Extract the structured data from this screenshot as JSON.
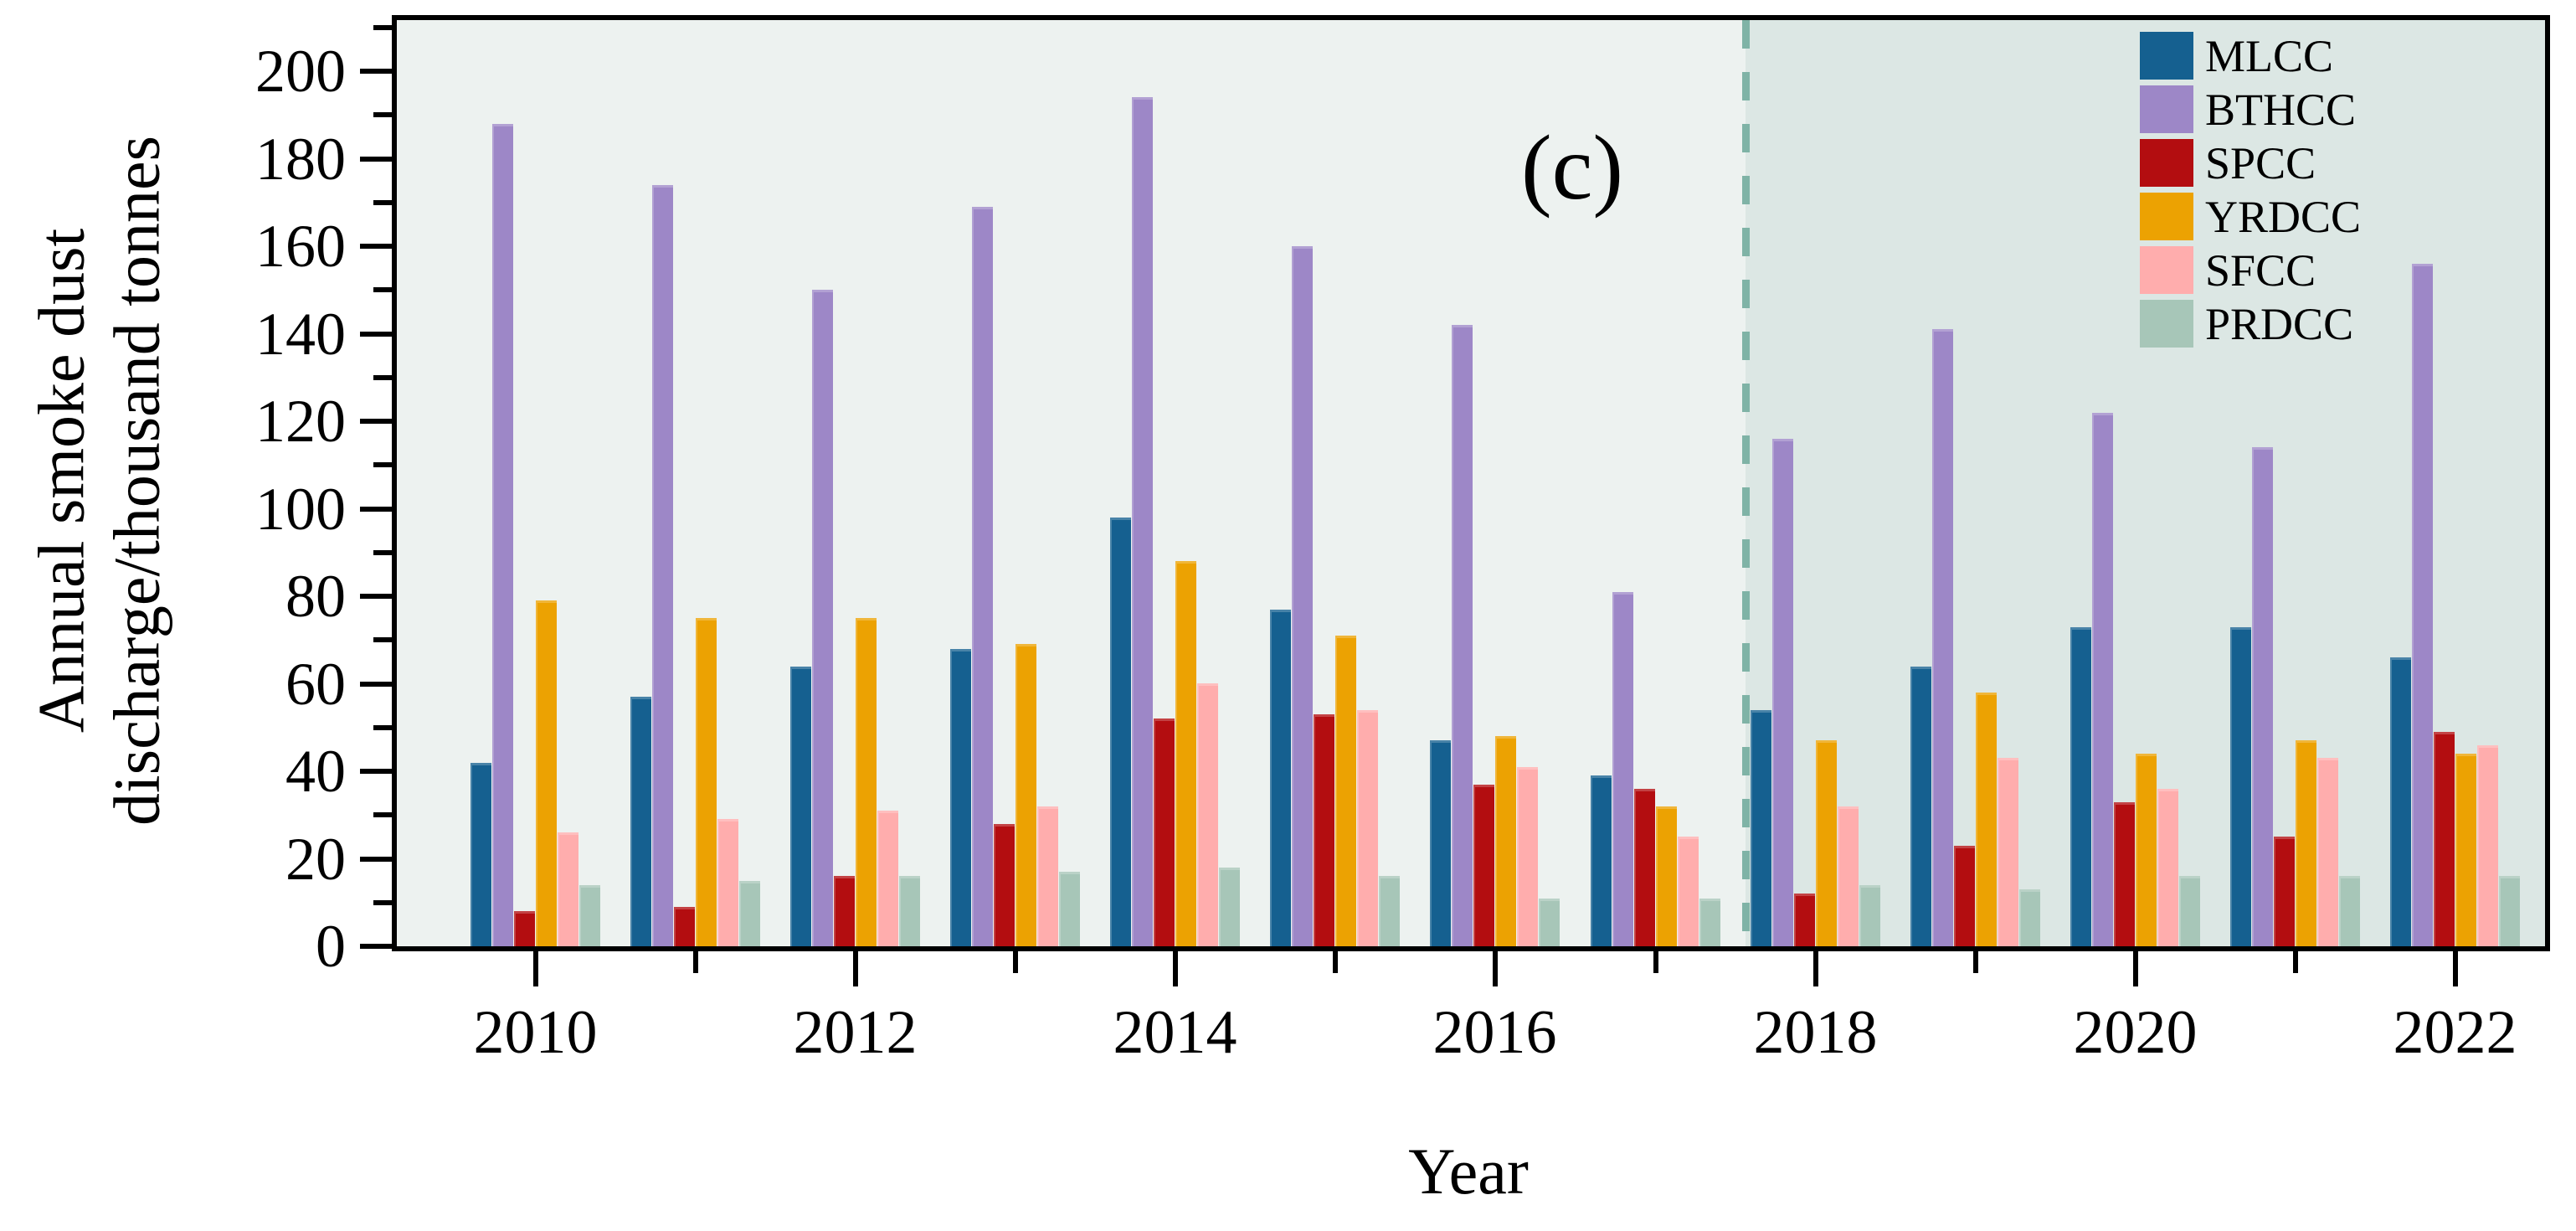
{
  "figure": {
    "panel_label": "(c)",
    "y_axis": {
      "title_line1": "Annual smoke dust",
      "title_line2": "discharge/thousand tonnes",
      "major_ticks": [
        0,
        20,
        40,
        60,
        80,
        100,
        120,
        140,
        160,
        180,
        200
      ],
      "minor_ticks": [
        10,
        30,
        50,
        70,
        90,
        110,
        130,
        150,
        170,
        190,
        210
      ]
    },
    "x_axis": {
      "title": "Year",
      "years": [
        2010,
        2011,
        2012,
        2013,
        2014,
        2015,
        2016,
        2017,
        2018,
        2019,
        2020,
        2021,
        2022
      ],
      "labeled_years": [
        2010,
        2012,
        2014,
        2016,
        2018,
        2020,
        2022
      ]
    },
    "colors": {
      "background_left": "#edf2f0",
      "background_right": "#dce7e4",
      "dashed_line": "#7fb3a6",
      "axis": "#000000"
    },
    "separator": {
      "after_year": 2017,
      "style": "vertical-dashed-line"
    }
  },
  "chart_data": {
    "type": "bar",
    "title": "",
    "xlabel": "Year",
    "ylabel": "Annual smoke dust discharge/thousand tonnes",
    "ylim": [
      0,
      212
    ],
    "grid": false,
    "legend_position": "top-right",
    "annotations": [
      "(c)"
    ],
    "categories": [
      2010,
      2011,
      2012,
      2013,
      2014,
      2015,
      2016,
      2017,
      2018,
      2019,
      2020,
      2021,
      2022
    ],
    "series": [
      {
        "name": "MLCC",
        "color": "#156090",
        "values": [
          42,
          57,
          64,
          68,
          98,
          77,
          47,
          39,
          54,
          64,
          73,
          73,
          66
        ]
      },
      {
        "name": "BTHCC",
        "color": "#9d87c7",
        "values": [
          188,
          174,
          150,
          169,
          194,
          160,
          142,
          81,
          116,
          141,
          122,
          114,
          156
        ]
      },
      {
        "name": "SPCC",
        "color": "#b30d10",
        "values": [
          8,
          9,
          16,
          28,
          52,
          53,
          37,
          36,
          12,
          23,
          33,
          25,
          49
        ]
      },
      {
        "name": "YRDCC",
        "color": "#eca202",
        "values": [
          79,
          75,
          75,
          69,
          88,
          71,
          48,
          32,
          47,
          58,
          44,
          47,
          44
        ]
      },
      {
        "name": "SFCC",
        "color": "#ffadad",
        "values": [
          26,
          29,
          31,
          32,
          60,
          54,
          41,
          25,
          32,
          43,
          36,
          43,
          46
        ]
      },
      {
        "name": "PRDCC",
        "color": "#a7c6b8",
        "values": [
          14,
          15,
          16,
          17,
          18,
          16,
          11,
          11,
          14,
          13,
          16,
          16,
          16
        ]
      }
    ]
  }
}
